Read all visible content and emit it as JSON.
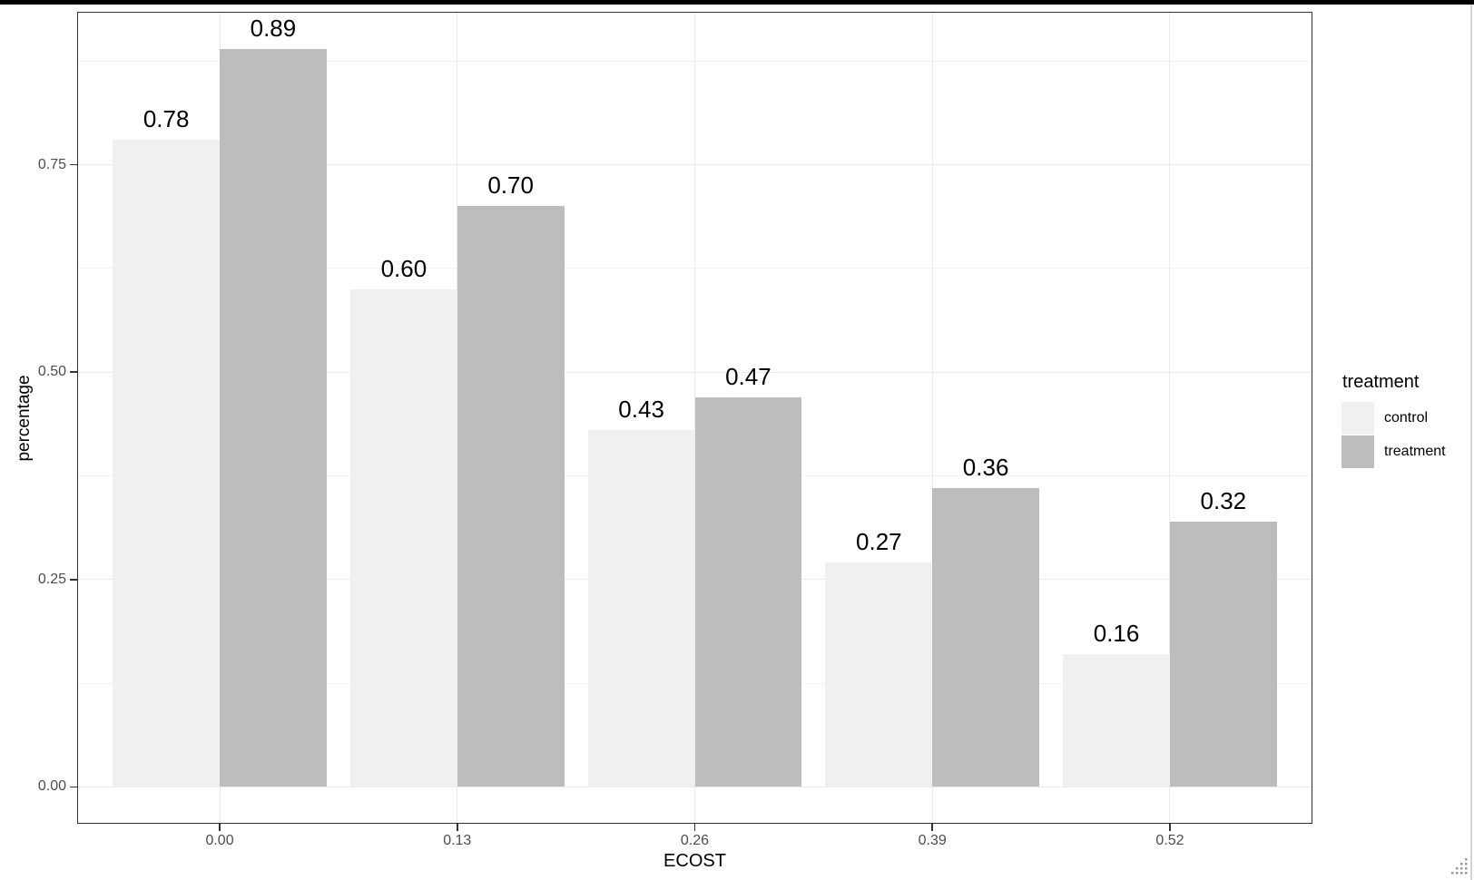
{
  "chart_data": {
    "type": "bar",
    "title": "",
    "xlabel": "ECOST",
    "ylabel": "percentage",
    "categories": [
      "0.00",
      "0.13",
      "0.26",
      "0.39",
      "0.52"
    ],
    "series": [
      {
        "name": "control",
        "color": "#f0f0f0",
        "values": [
          0.78,
          0.6,
          0.43,
          0.27,
          0.16
        ],
        "labels": [
          "0.78",
          "0.60",
          "0.43",
          "0.27",
          "0.16"
        ]
      },
      {
        "name": "treatment",
        "color": "#bdbdbd",
        "values": [
          0.89,
          0.7,
          0.47,
          0.36,
          0.32
        ],
        "labels": [
          "0.89",
          "0.70",
          "0.47",
          "0.36",
          "0.32"
        ]
      }
    ],
    "y_axis": {
      "ticks": [
        {
          "label": "0.00",
          "value": 0.0
        },
        {
          "label": "0.25",
          "value": 0.25
        },
        {
          "label": "0.50",
          "value": 0.5
        },
        {
          "label": "0.75",
          "value": 0.75
        }
      ],
      "minor_breaks": [
        0.125,
        0.375,
        0.625,
        0.875
      ],
      "lim": [
        -0.0445,
        0.9345
      ]
    },
    "legend": {
      "title": "treatment",
      "position": "right",
      "entries": [
        {
          "label": "control",
          "color": "#f0f0f0"
        },
        {
          "label": "treatment",
          "color": "#bdbdbd"
        }
      ]
    },
    "grid": true
  },
  "colors": {
    "panel_border": "#333333",
    "grid_major": "#ebebeb",
    "grid_minor": "#f3f3f3",
    "tick_mark": "#333333",
    "tick_label": "#4d4d4d",
    "text": "#000000",
    "top_bar": "#000000",
    "right_edge": "#d4d4d4",
    "grip_dot": "#9a9a9a"
  }
}
